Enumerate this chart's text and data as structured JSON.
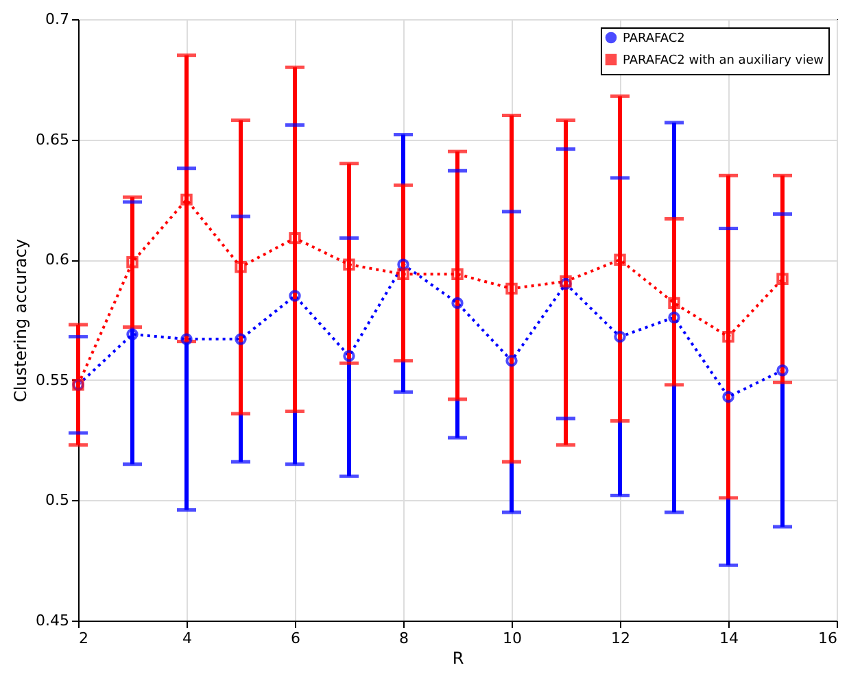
{
  "chart_data": {
    "type": "line",
    "xlabel": "R",
    "ylabel": "Clustering accuracy",
    "x": [
      2,
      3,
      4,
      5,
      6,
      7,
      8,
      9,
      10,
      11,
      12,
      13,
      14,
      15
    ],
    "xlim": [
      2,
      16
    ],
    "xticks": [
      2,
      4,
      6,
      8,
      10,
      12,
      14,
      16
    ],
    "ylim": [
      0.45,
      0.7
    ],
    "yticks": [
      0.45,
      0.5,
      0.55,
      0.6,
      0.65,
      0.7
    ],
    "grid": true,
    "legend": "top right",
    "line_style": "dotted",
    "series": [
      {
        "name": "PARAFAC2",
        "color": "#0000ff",
        "marker": "circle",
        "values": [
          0.548,
          0.569,
          0.567,
          0.567,
          0.585,
          0.56,
          0.598,
          0.582,
          0.558,
          0.59,
          0.568,
          0.576,
          0.543,
          0.554
        ],
        "errors": [
          [
            0.528,
            0.568
          ],
          [
            0.515,
            0.624
          ],
          [
            0.496,
            0.638
          ],
          [
            0.516,
            0.618
          ],
          [
            0.515,
            0.656
          ],
          [
            0.51,
            0.609
          ],
          [
            0.545,
            0.652
          ],
          [
            0.526,
            0.637
          ],
          [
            0.495,
            0.62
          ],
          [
            0.534,
            0.646
          ],
          [
            0.502,
            0.634
          ],
          [
            0.495,
            0.657
          ],
          [
            0.473,
            0.613
          ],
          [
            0.489,
            0.619
          ]
        ]
      },
      {
        "name": "PARAFAC2 with an auxiliary view",
        "color": "#ff0000",
        "marker": "square",
        "values": [
          0.548,
          0.599,
          0.625,
          0.597,
          0.609,
          0.598,
          0.594,
          0.594,
          0.588,
          0.591,
          0.6,
          0.582,
          0.568,
          0.592
        ],
        "errors": [
          [
            0.523,
            0.573
          ],
          [
            0.572,
            0.626
          ],
          [
            0.566,
            0.685
          ],
          [
            0.536,
            0.658
          ],
          [
            0.537,
            0.68
          ],
          [
            0.557,
            0.64
          ],
          [
            0.558,
            0.631
          ],
          [
            0.542,
            0.645
          ],
          [
            0.516,
            0.66
          ],
          [
            0.523,
            0.658
          ],
          [
            0.533,
            0.668
          ],
          [
            0.548,
            0.617
          ],
          [
            0.501,
            0.635
          ],
          [
            0.549,
            0.635
          ]
        ]
      }
    ]
  }
}
